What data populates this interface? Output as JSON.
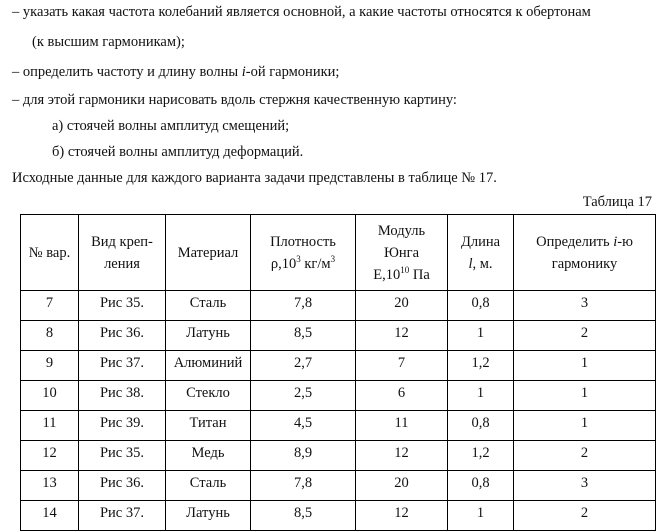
{
  "text": {
    "bullet_1": [
      "– указать какая частота колебаний является основной, а какие частоты относятся к обертонам",
      "(к высшим гармоникам);"
    ],
    "bullet_2": [
      "– определить частоту и длину волны ",
      "i",
      "-ой гармоники;"
    ],
    "bullet_3": "– для этой гармоники нарисовать вдоль стержня качественную картину:",
    "sub_a": "а) стоячей волны амплитуд смещений;",
    "sub_b": "б) стоячей волны амплитуд деформаций.",
    "intro": "Исходные данные для каждого варианта задачи представлены в таблице № 17.",
    "table_caption": "Таблица 17"
  },
  "table": {
    "header": [
      [
        "№ вар."
      ],
      [
        "Вид креп-",
        "ления"
      ],
      [
        "Материал"
      ],
      [
        "Плотность",
        "ρ,10",
        "3",
        " кг/м",
        "3"
      ],
      [
        "Модуль",
        "Юнга",
        "E,10",
        "10",
        " Па"
      ],
      [
        "Длина",
        "l",
        ", м."
      ],
      [
        "Определить ",
        "i",
        "-ю",
        "гармонику"
      ]
    ],
    "rows": [
      [
        "7",
        "Рис 35.",
        "Сталь",
        "7,8",
        "20",
        "0,8",
        "3"
      ],
      [
        "8",
        "Рис 36.",
        "Латунь",
        "8,5",
        "12",
        "1",
        "2"
      ],
      [
        "9",
        "Рис 37.",
        "Алюминий",
        "2,7",
        "7",
        "1,2",
        "1"
      ],
      [
        "10",
        "Рис 38.",
        "Стекло",
        "2,5",
        "6",
        "1",
        "1"
      ],
      [
        "11",
        "Рис 39.",
        "Титан",
        "4,5",
        "11",
        "0,8",
        "1"
      ],
      [
        "12",
        "Рис 35.",
        "Медь",
        "8,9",
        "12",
        "1,2",
        "2"
      ],
      [
        "13",
        "Рис 36.",
        "Сталь",
        "7,8",
        "20",
        "0,8",
        "3"
      ],
      [
        "14",
        "Рис 37.",
        "Латунь",
        "8,5",
        "12",
        "1",
        "2"
      ]
    ]
  }
}
